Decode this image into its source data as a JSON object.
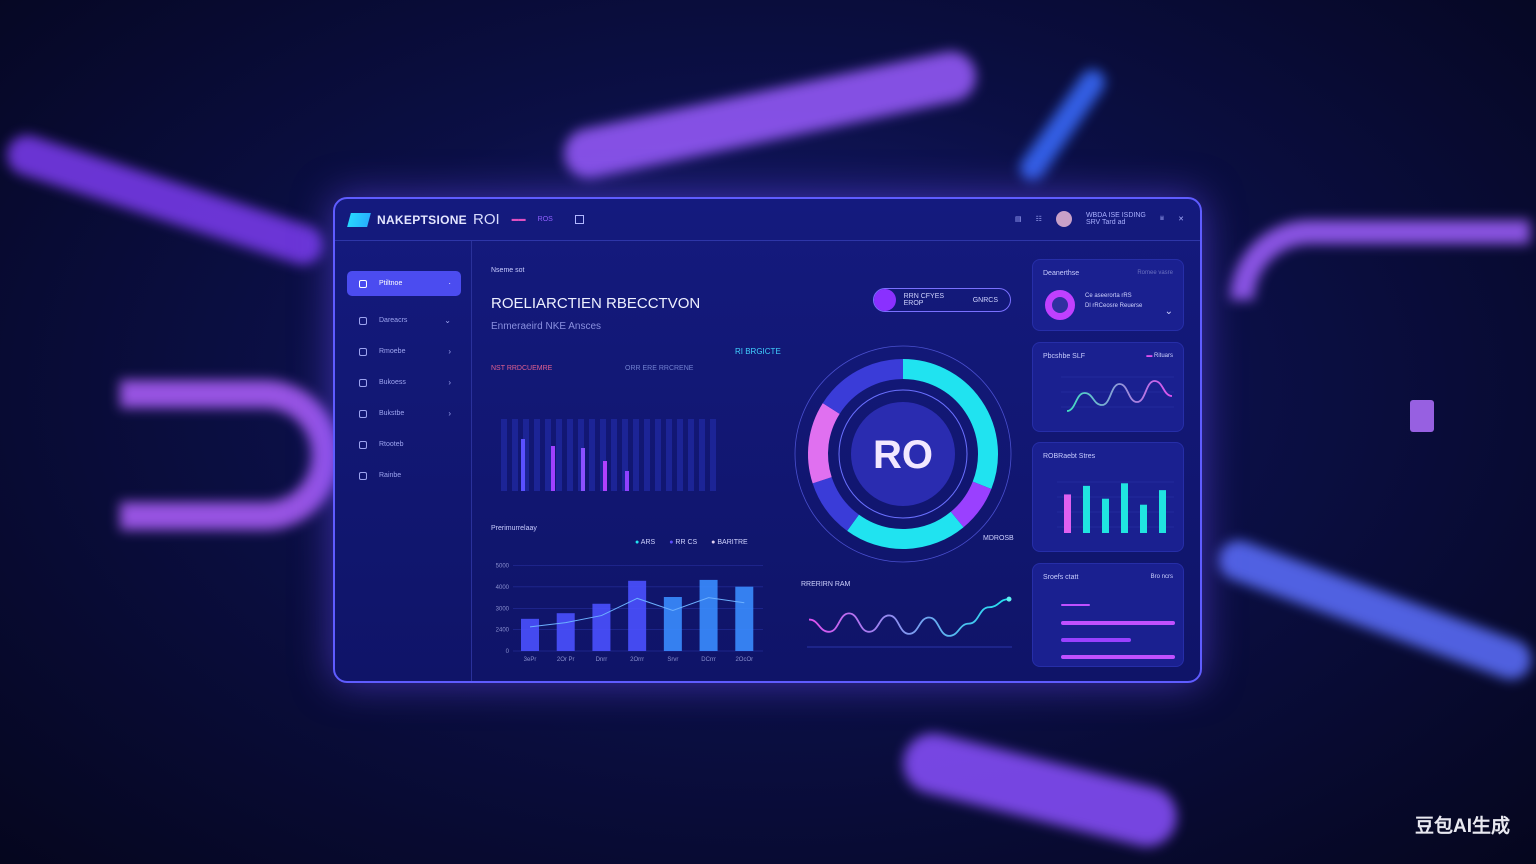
{
  "header": {
    "brand": "NAKEPTSIONE",
    "brand_suffix": "ROI",
    "tag1": "▬▬",
    "tag2": "ROS",
    "user_line1": "WBDA ISE ISDING",
    "user_line2": "SRV Tard ad"
  },
  "sidebar": {
    "items": [
      {
        "label": "Ptiltnoe",
        "active": true
      },
      {
        "label": "Dareacrs"
      },
      {
        "label": "Rmoebe"
      },
      {
        "label": "Bukoess"
      },
      {
        "label": "Bukstbe"
      },
      {
        "label": "Rtooteb"
      },
      {
        "label": "Rainbe"
      }
    ]
  },
  "main": {
    "eyebrow": "Nseme sot",
    "title": "ROELIARCTIEN RBECCTVON",
    "subtitle": "Enmeraeird NKE Ansces",
    "pill_text": "RRN CFYES EROP",
    "pill_value": "GNRCS",
    "stat1": "NST RRDCUEMRE",
    "stat2": "ORR ERE RRCRENE",
    "donut_label": "RO",
    "donut_callout": "RI BRGICTE",
    "donut_callout2": "MDROSB",
    "bar_chart_title": "Prerimurrelaay",
    "legend": [
      "ARS",
      "RR CS",
      "BARITRE"
    ],
    "line_chart_title": "RRERIRN RAM"
  },
  "colors": {
    "accent": "#4b4cf0",
    "cyan": "#20e3f0",
    "pink": "#e070f0",
    "purple": "#9a40ff"
  },
  "right": {
    "card1": {
      "title": "Deanerthse",
      "right": "Romee vasre",
      "line1": "Ce aseerorta rRS",
      "line2": "Dl rRCeosre Reuerse"
    },
    "card2": {
      "title": "Pbcshbe SLF",
      "legend": "Rituars"
    },
    "card3": {
      "title": "ROBRaebt Stres"
    },
    "card4": {
      "title": "Sroefs ctatt",
      "right": "Bro ncrs"
    }
  },
  "chart_data": [
    {
      "type": "bar",
      "title": "Prerimurrelaay",
      "categories": [
        "3ePr",
        "2Or Pr",
        "Dnrr",
        "2Orrr",
        "Srvr",
        "DCrrr",
        "2OcOr"
      ],
      "series": [
        {
          "name": "ARS",
          "values": [
            1430,
            1680,
            2100,
            3120,
            2400,
            3160,
            2860
          ]
        }
      ],
      "yticks": [
        "0",
        "2400",
        "3000",
        "4000",
        "5000"
      ],
      "ylim": [
        0,
        4000
      ],
      "grid": true
    },
    {
      "type": "pie",
      "center_label": "RO",
      "values": [
        31,
        8,
        21,
        10,
        14,
        16
      ]
    },
    {
      "type": "line",
      "title": "RRERIRN RAM",
      "values": [
        50,
        20,
        65,
        20,
        60,
        15,
        55,
        10,
        40,
        80,
        100
      ],
      "ylim": [
        0,
        110
      ]
    },
    {
      "type": "line",
      "title": "Pbcshbe SLF",
      "values": [
        10,
        40,
        20,
        55,
        25,
        60,
        35
      ],
      "values_pink": [
        null,
        null,
        null,
        null,
        25,
        60,
        35
      ],
      "ylim": [
        0,
        70
      ]
    },
    {
      "type": "bar",
      "title": "ROBRaebt Stres",
      "values": [
        45,
        55,
        40,
        58,
        33,
        50
      ],
      "ylim": [
        0,
        70
      ]
    },
    {
      "type": "bar",
      "title": "Sroefs ctatt",
      "orientation": "horizontal",
      "values": [
        25,
        100,
        61,
        100
      ],
      "xlim": [
        0,
        100
      ]
    }
  ],
  "watermark": "豆包AI生成"
}
